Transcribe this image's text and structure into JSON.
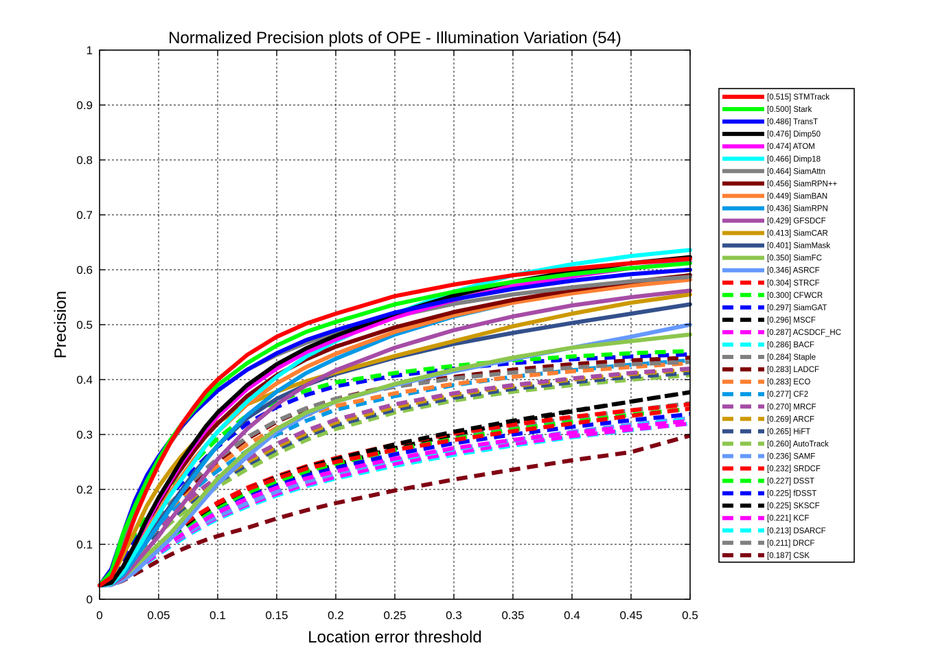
{
  "chart_data": {
    "type": "line",
    "title": "Normalized Precision plots of OPE - Illumination Variation (54)",
    "xlabel": "Location error threshold",
    "ylabel": "Precision",
    "xlim": [
      0,
      0.5
    ],
    "ylim": [
      0,
      1
    ],
    "xticks": [
      0,
      0.05,
      0.1,
      0.15,
      0.2,
      0.25,
      0.3,
      0.35,
      0.4,
      0.45,
      0.5
    ],
    "xtick_labels": [
      "0",
      "0.05",
      "0.1",
      "0.15",
      "0.2",
      "0.25",
      "0.3",
      "0.35",
      "0.4",
      "0.45",
      "0.5"
    ],
    "yticks": [
      0,
      0.1,
      0.2,
      0.3,
      0.4,
      0.5,
      0.6,
      0.7,
      0.8,
      0.9,
      1
    ],
    "ytick_labels": [
      "0",
      "0.1",
      "0.2",
      "0.3",
      "0.4",
      "0.5",
      "0.6",
      "0.7",
      "0.8",
      "0.9",
      "1"
    ],
    "grid": true,
    "legend_position": "right",
    "x": [
      0,
      0.01,
      0.02,
      0.03,
      0.04,
      0.05,
      0.06,
      0.07,
      0.08,
      0.09,
      0.1,
      0.125,
      0.15,
      0.175,
      0.2,
      0.25,
      0.3,
      0.35,
      0.4,
      0.45,
      0.5
    ],
    "series": [
      {
        "name": "[0.515] STMTrack",
        "color": "#ff0000",
        "style": "solid",
        "values": [
          0.025,
          0.04,
          0.09,
          0.15,
          0.2,
          0.245,
          0.285,
          0.32,
          0.35,
          0.378,
          0.4,
          0.445,
          0.478,
          0.502,
          0.52,
          0.552,
          0.573,
          0.59,
          0.602,
          0.612,
          0.62
        ]
      },
      {
        "name": "[0.500] Stark",
        "color": "#00ff00",
        "style": "solid",
        "values": [
          0.025,
          0.05,
          0.12,
          0.17,
          0.215,
          0.255,
          0.29,
          0.32,
          0.345,
          0.368,
          0.39,
          0.43,
          0.462,
          0.487,
          0.505,
          0.537,
          0.56,
          0.578,
          0.592,
          0.603,
          0.612
        ]
      },
      {
        "name": "[0.486] TransT",
        "color": "#0000ff",
        "style": "solid",
        "values": [
          0.025,
          0.055,
          0.12,
          0.18,
          0.225,
          0.26,
          0.29,
          0.317,
          0.34,
          0.36,
          0.38,
          0.418,
          0.448,
          0.472,
          0.49,
          0.522,
          0.546,
          0.565,
          0.58,
          0.592,
          0.6
        ]
      },
      {
        "name": "[0.476] Dimp50",
        "color": "#000000",
        "style": "solid",
        "values": [
          0.025,
          0.03,
          0.06,
          0.1,
          0.145,
          0.185,
          0.22,
          0.255,
          0.285,
          0.315,
          0.34,
          0.39,
          0.428,
          0.457,
          0.48,
          0.52,
          0.553,
          0.578,
          0.597,
          0.612,
          0.623
        ]
      },
      {
        "name": "[0.474] ATOM",
        "color": "#ff00ff",
        "style": "solid",
        "values": [
          0.025,
          0.03,
          0.06,
          0.1,
          0.14,
          0.18,
          0.215,
          0.25,
          0.28,
          0.308,
          0.333,
          0.383,
          0.42,
          0.45,
          0.473,
          0.513,
          0.545,
          0.57,
          0.588,
          0.603,
          0.614
        ]
      },
      {
        "name": "[0.466] Dimp18",
        "color": "#00ffff",
        "style": "solid",
        "values": [
          0.025,
          0.028,
          0.05,
          0.085,
          0.12,
          0.155,
          0.19,
          0.22,
          0.25,
          0.28,
          0.305,
          0.36,
          0.405,
          0.442,
          0.47,
          0.52,
          0.56,
          0.59,
          0.61,
          0.625,
          0.636
        ]
      },
      {
        "name": "[0.464] SiamAttn",
        "color": "#808080",
        "style": "solid",
        "values": [
          0.025,
          0.045,
          0.1,
          0.16,
          0.21,
          0.25,
          0.285,
          0.315,
          0.34,
          0.362,
          0.38,
          0.418,
          0.445,
          0.467,
          0.485,
          0.515,
          0.538,
          0.555,
          0.568,
          0.579,
          0.587
        ]
      },
      {
        "name": "[0.456] SiamRPN++",
        "color": "#800000",
        "style": "solid",
        "values": [
          0.025,
          0.03,
          0.06,
          0.1,
          0.14,
          0.175,
          0.21,
          0.24,
          0.27,
          0.297,
          0.32,
          0.37,
          0.408,
          0.437,
          0.46,
          0.495,
          0.523,
          0.545,
          0.563,
          0.578,
          0.59
        ]
      },
      {
        "name": "[0.449] SiamBAN",
        "color": "#ff8033",
        "style": "solid",
        "values": [
          0.025,
          0.03,
          0.055,
          0.09,
          0.125,
          0.16,
          0.195,
          0.225,
          0.255,
          0.28,
          0.305,
          0.355,
          0.393,
          0.423,
          0.447,
          0.487,
          0.517,
          0.54,
          0.557,
          0.571,
          0.582
        ]
      },
      {
        "name": "[0.436] SiamRPN",
        "color": "#0099e6",
        "style": "solid",
        "values": [
          0.025,
          0.028,
          0.045,
          0.075,
          0.105,
          0.135,
          0.165,
          0.195,
          0.225,
          0.253,
          0.28,
          0.335,
          0.378,
          0.412,
          0.438,
          0.482,
          0.515,
          0.54,
          0.56,
          0.577,
          0.59
        ]
      },
      {
        "name": "[0.429] GFSDCF",
        "color": "#a64ca6",
        "style": "solid",
        "values": [
          0.025,
          0.027,
          0.04,
          0.065,
          0.09,
          0.115,
          0.145,
          0.172,
          0.2,
          0.228,
          0.255,
          0.31,
          0.355,
          0.39,
          0.417,
          0.458,
          0.49,
          0.515,
          0.535,
          0.55,
          0.562
        ]
      },
      {
        "name": "[0.413] SiamCAR",
        "color": "#cc9900",
        "style": "solid",
        "values": [
          0.025,
          0.04,
          0.08,
          0.125,
          0.17,
          0.205,
          0.235,
          0.262,
          0.285,
          0.305,
          0.322,
          0.355,
          0.378,
          0.397,
          0.413,
          0.443,
          0.47,
          0.497,
          0.52,
          0.54,
          0.555
        ]
      },
      {
        "name": "[0.401] SiamMask",
        "color": "#33508c",
        "style": "solid",
        "values": [
          0.025,
          0.03,
          0.05,
          0.08,
          0.11,
          0.14,
          0.17,
          0.2,
          0.23,
          0.255,
          0.28,
          0.33,
          0.365,
          0.39,
          0.41,
          0.44,
          0.465,
          0.485,
          0.503,
          0.52,
          0.537
        ]
      },
      {
        "name": "[0.350] SiamFC",
        "color": "#8cc64d",
        "style": "solid",
        "values": [
          0.025,
          0.027,
          0.04,
          0.06,
          0.08,
          0.1,
          0.12,
          0.145,
          0.17,
          0.195,
          0.22,
          0.27,
          0.31,
          0.34,
          0.36,
          0.392,
          0.418,
          0.44,
          0.458,
          0.47,
          0.482
        ]
      },
      {
        "name": "[0.346] ASRCF",
        "color": "#6699ff",
        "style": "solid",
        "values": [
          0.025,
          0.026,
          0.035,
          0.05,
          0.07,
          0.09,
          0.11,
          0.135,
          0.16,
          0.185,
          0.21,
          0.26,
          0.305,
          0.335,
          0.36,
          0.39,
          0.415,
          0.437,
          0.458,
          0.478,
          0.5
        ]
      },
      {
        "name": "[0.304] STRCF",
        "color": "#ff0000",
        "style": "dash",
        "values": [
          0.025,
          0.028,
          0.04,
          0.06,
          0.08,
          0.1,
          0.118,
          0.135,
          0.15,
          0.163,
          0.175,
          0.2,
          0.22,
          0.238,
          0.25,
          0.272,
          0.29,
          0.306,
          0.32,
          0.334,
          0.347
        ]
      },
      {
        "name": "[0.300] CFWCR",
        "color": "#00ff00",
        "style": "dash",
        "values": [
          0.025,
          0.045,
          0.085,
          0.12,
          0.15,
          0.175,
          0.2,
          0.225,
          0.25,
          0.272,
          0.293,
          0.335,
          0.36,
          0.38,
          0.395,
          0.412,
          0.425,
          0.435,
          0.442,
          0.448,
          0.452
        ]
      },
      {
        "name": "[0.297] SiamGAT",
        "color": "#0000ff",
        "style": "dash",
        "values": [
          0.025,
          0.035,
          0.075,
          0.11,
          0.14,
          0.165,
          0.19,
          0.213,
          0.236,
          0.258,
          0.278,
          0.32,
          0.35,
          0.372,
          0.388,
          0.407,
          0.42,
          0.43,
          0.437,
          0.442,
          0.446
        ]
      },
      {
        "name": "[0.296] MSCF",
        "color": "#000000",
        "style": "dash",
        "values": [
          0.025,
          0.028,
          0.04,
          0.058,
          0.077,
          0.096,
          0.114,
          0.131,
          0.147,
          0.161,
          0.173,
          0.2,
          0.222,
          0.24,
          0.255,
          0.282,
          0.305,
          0.325,
          0.343,
          0.36,
          0.377
        ]
      },
      {
        "name": "[0.287] ACSDCF_HC",
        "color": "#ff00ff",
        "style": "dash",
        "values": [
          0.025,
          0.027,
          0.038,
          0.054,
          0.07,
          0.087,
          0.103,
          0.118,
          0.133,
          0.146,
          0.158,
          0.183,
          0.203,
          0.22,
          0.233,
          0.256,
          0.275,
          0.29,
          0.303,
          0.315,
          0.325
        ]
      },
      {
        "name": "[0.286] BACF",
        "color": "#00ffff",
        "style": "dash",
        "values": [
          0.025,
          0.027,
          0.038,
          0.054,
          0.071,
          0.088,
          0.104,
          0.119,
          0.134,
          0.147,
          0.159,
          0.183,
          0.203,
          0.22,
          0.233,
          0.254,
          0.273,
          0.289,
          0.303,
          0.316,
          0.328
        ]
      },
      {
        "name": "[0.284] Staple",
        "color": "#808080",
        "style": "dash",
        "values": [
          0.025,
          0.035,
          0.07,
          0.1,
          0.128,
          0.152,
          0.175,
          0.197,
          0.218,
          0.238,
          0.256,
          0.295,
          0.325,
          0.348,
          0.365,
          0.387,
          0.402,
          0.413,
          0.422,
          0.428,
          0.432
        ]
      },
      {
        "name": "[0.283] LADCF",
        "color": "#800000",
        "style": "dash",
        "values": [
          0.025,
          0.033,
          0.065,
          0.095,
          0.122,
          0.147,
          0.17,
          0.192,
          0.213,
          0.233,
          0.252,
          0.292,
          0.323,
          0.347,
          0.365,
          0.39,
          0.405,
          0.418,
          0.428,
          0.435,
          0.44
        ]
      },
      {
        "name": "[0.283] ECO",
        "color": "#ff8033",
        "style": "dash",
        "values": [
          0.025,
          0.033,
          0.065,
          0.094,
          0.12,
          0.144,
          0.166,
          0.187,
          0.207,
          0.226,
          0.243,
          0.282,
          0.312,
          0.335,
          0.352,
          0.375,
          0.392,
          0.405,
          0.415,
          0.423,
          0.43
        ]
      },
      {
        "name": "[0.277] CF2",
        "color": "#0099e6",
        "style": "dash",
        "values": [
          0.025,
          0.03,
          0.055,
          0.085,
          0.112,
          0.137,
          0.16,
          0.181,
          0.2,
          0.218,
          0.234,
          0.27,
          0.3,
          0.325,
          0.345,
          0.37,
          0.39,
          0.405,
          0.417,
          0.427,
          0.435
        ]
      },
      {
        "name": "[0.270] MRCF",
        "color": "#a64ca6",
        "style": "dash",
        "values": [
          0.025,
          0.03,
          0.055,
          0.083,
          0.108,
          0.131,
          0.152,
          0.172,
          0.19,
          0.207,
          0.222,
          0.255,
          0.283,
          0.307,
          0.327,
          0.355,
          0.375,
          0.39,
          0.402,
          0.412,
          0.42
        ]
      },
      {
        "name": "[0.269] ARCF",
        "color": "#cc9900",
        "style": "dash",
        "values": [
          0.025,
          0.03,
          0.055,
          0.083,
          0.108,
          0.13,
          0.15,
          0.169,
          0.187,
          0.203,
          0.218,
          0.25,
          0.278,
          0.302,
          0.322,
          0.35,
          0.372,
          0.388,
          0.4,
          0.41,
          0.418
        ]
      },
      {
        "name": "[0.265] HiFT",
        "color": "#33508c",
        "style": "dash",
        "values": [
          0.025,
          0.03,
          0.052,
          0.079,
          0.103,
          0.125,
          0.145,
          0.164,
          0.182,
          0.198,
          0.213,
          0.245,
          0.273,
          0.297,
          0.317,
          0.345,
          0.367,
          0.383,
          0.395,
          0.405,
          0.412
        ]
      },
      {
        "name": "[0.260] AutoTrack",
        "color": "#8cc64d",
        "style": "dash",
        "values": [
          0.025,
          0.03,
          0.052,
          0.078,
          0.1,
          0.12,
          0.139,
          0.157,
          0.174,
          0.19,
          0.205,
          0.237,
          0.265,
          0.29,
          0.31,
          0.34,
          0.362,
          0.378,
          0.39,
          0.4,
          0.408
        ]
      },
      {
        "name": "[0.236] SAMF",
        "color": "#6699ff",
        "style": "dash",
        "values": [
          0.025,
          0.027,
          0.038,
          0.054,
          0.07,
          0.086,
          0.101,
          0.115,
          0.128,
          0.14,
          0.151,
          0.175,
          0.196,
          0.214,
          0.229,
          0.253,
          0.273,
          0.29,
          0.305,
          0.318,
          0.33
        ]
      },
      {
        "name": "[0.232] SRDCF",
        "color": "#ff0000",
        "style": "dash",
        "values": [
          0.025,
          0.028,
          0.042,
          0.06,
          0.079,
          0.098,
          0.116,
          0.133,
          0.149,
          0.163,
          0.176,
          0.203,
          0.224,
          0.242,
          0.257,
          0.282,
          0.302,
          0.318,
          0.332,
          0.344,
          0.355
        ]
      },
      {
        "name": "[0.227] DSST",
        "color": "#00ff00",
        "style": "dash",
        "values": [
          0.025,
          0.027,
          0.04,
          0.058,
          0.076,
          0.094,
          0.111,
          0.127,
          0.142,
          0.156,
          0.168,
          0.194,
          0.215,
          0.233,
          0.247,
          0.272,
          0.292,
          0.309,
          0.323,
          0.336,
          0.347
        ]
      },
      {
        "name": "[0.225] fDSST",
        "color": "#0000ff",
        "style": "dash",
        "values": [
          0.025,
          0.027,
          0.039,
          0.056,
          0.073,
          0.09,
          0.106,
          0.121,
          0.135,
          0.148,
          0.16,
          0.186,
          0.207,
          0.225,
          0.239,
          0.264,
          0.284,
          0.3,
          0.314,
          0.326,
          0.337
        ]
      },
      {
        "name": "[0.225] SKSCF",
        "color": "#000000",
        "style": "dash",
        "values": [
          0.025,
          0.027,
          0.039,
          0.056,
          0.073,
          0.089,
          0.105,
          0.12,
          0.134,
          0.147,
          0.159,
          0.186,
          0.208,
          0.228,
          0.245,
          0.275,
          0.3,
          0.322,
          0.342,
          0.36,
          0.377
        ]
      },
      {
        "name": "[0.221] KCF",
        "color": "#ff00ff",
        "style": "dash",
        "values": [
          0.025,
          0.026,
          0.036,
          0.052,
          0.068,
          0.084,
          0.099,
          0.113,
          0.126,
          0.138,
          0.149,
          0.172,
          0.192,
          0.209,
          0.223,
          0.247,
          0.267,
          0.283,
          0.297,
          0.309,
          0.32
        ]
      },
      {
        "name": "[0.213] DSARCF",
        "color": "#00ffff",
        "style": "dash",
        "values": [
          0.025,
          0.026,
          0.036,
          0.051,
          0.066,
          0.082,
          0.096,
          0.11,
          0.123,
          0.135,
          0.146,
          0.169,
          0.189,
          0.206,
          0.22,
          0.243,
          0.263,
          0.28,
          0.295,
          0.308,
          0.32
        ]
      },
      {
        "name": "[0.211] DRCF",
        "color": "#808080",
        "style": "dash",
        "values": [
          0.025,
          0.028,
          0.042,
          0.06,
          0.079,
          0.097,
          0.114,
          0.13,
          0.145,
          0.158,
          0.17,
          0.196,
          0.217,
          0.235,
          0.25,
          0.275,
          0.296,
          0.314,
          0.33,
          0.344,
          0.357
        ]
      },
      {
        "name": "[0.187] CSK",
        "color": "#800012",
        "style": "dash",
        "values": [
          0.025,
          0.026,
          0.034,
          0.046,
          0.058,
          0.07,
          0.081,
          0.091,
          0.1,
          0.108,
          0.115,
          0.13,
          0.147,
          0.162,
          0.175,
          0.198,
          0.218,
          0.236,
          0.253,
          0.268,
          0.298
        ]
      }
    ]
  }
}
